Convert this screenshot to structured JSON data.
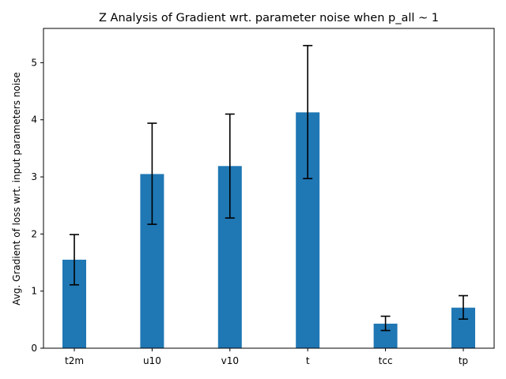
{
  "chart_data": {
    "type": "bar",
    "title": "Z Analysis of Gradient wrt. parameter noise when p_all ~ 1",
    "xlabel": "",
    "ylabel": "Avg. Gradient of loss wrt. input parameters noise",
    "categories": [
      "t2m",
      "u10",
      "v10",
      "t",
      "tcc",
      "tp"
    ],
    "values": [
      1.55,
      3.05,
      3.19,
      4.13,
      0.43,
      0.71
    ],
    "error_low": [
      1.11,
      2.17,
      2.28,
      2.97,
      0.31,
      0.51
    ],
    "error_high": [
      1.99,
      3.94,
      4.1,
      5.3,
      0.56,
      0.92
    ],
    "ylim": [
      0,
      5.6
    ],
    "yticks": [
      "0",
      "1",
      "2",
      "3",
      "4",
      "5"
    ],
    "grid": false,
    "colors": {
      "bar": "#1f77b4",
      "error": "#000000",
      "axis": "#000000"
    }
  }
}
